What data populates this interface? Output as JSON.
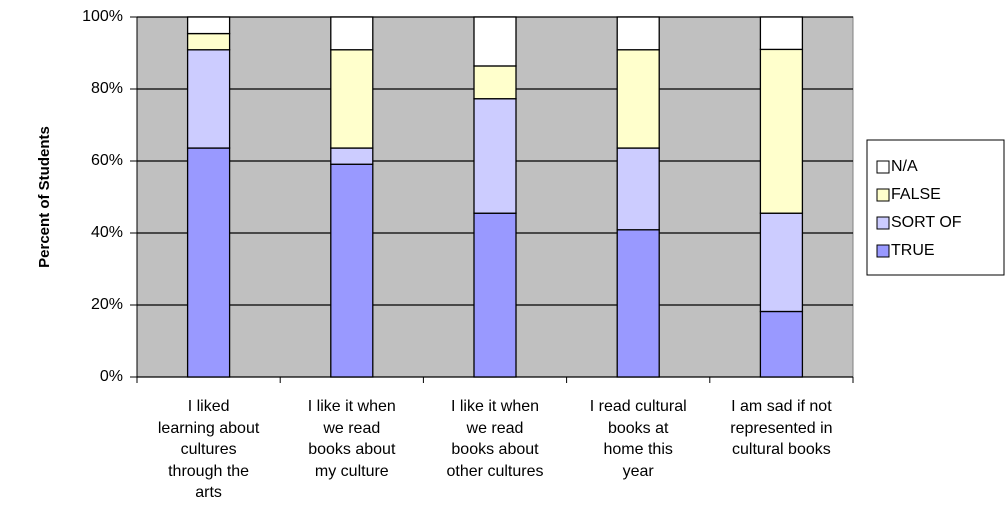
{
  "chart_data": {
    "type": "stacked_bar",
    "y_label": "Percent of Students",
    "categories": [
      "I liked\nlearning about\ncultures\nthrough the\narts",
      "I like it when\nwe read\nbooks about\nmy culture",
      "I like it when\nwe read\nbooks about\nother cultures",
      "I read cultural\nbooks at\nhome this\nyear",
      "I am sad if not\nrepresented in\ncultural books"
    ],
    "series": [
      {
        "name": "TRUE",
        "color": "#9999ff",
        "values": [
          63.6,
          59.1,
          45.5,
          40.9,
          18.2
        ]
      },
      {
        "name": "SORT OF",
        "color": "#ccccff",
        "values": [
          27.3,
          4.5,
          31.8,
          22.7,
          27.3
        ]
      },
      {
        "name": "FALSE",
        "color": "#ffffcc",
        "values": [
          4.5,
          27.3,
          9.1,
          27.3,
          45.5
        ]
      },
      {
        "name": "N/A",
        "color": "#ffffff",
        "values": [
          4.6,
          9.1,
          13.6,
          9.1,
          9.0
        ]
      }
    ],
    "ylim": [
      0,
      100
    ],
    "yticks": [
      {
        "value": 0,
        "label": "0%"
      },
      {
        "value": 20,
        "label": "20%"
      },
      {
        "value": 40,
        "label": "40%"
      },
      {
        "value": 60,
        "label": "60%"
      },
      {
        "value": 80,
        "label": "80%"
      },
      {
        "value": 100,
        "label": "100%"
      }
    ],
    "grid": true,
    "plot_background": "#c0c0c0",
    "legend": "right"
  }
}
